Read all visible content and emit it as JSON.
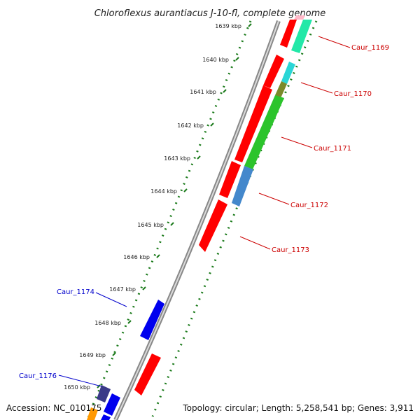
{
  "title": "Chloroflexus aurantiacus J-10-fl, complete genome",
  "accession": "Accession: NC_010175",
  "topology": "Topology: circular; Length: 5,258,541 bp; Genes: 3,911",
  "colors": {
    "forward_label": "#cc0000",
    "reverse_label": "#0000cc",
    "forward_cds": "#ff0000",
    "reverse_cds": "#0000ee",
    "backbone": "#888888",
    "tick": "#1a7a1a",
    "gc_high": "#2cc42c",
    "gc_mid": "#4488cc",
    "gc_low": "#22e8a8"
  },
  "kbp_ticks": [
    {
      "label": "1639 kbp"
    },
    {
      "label": "1640 kbp"
    },
    {
      "label": "1641 kbp"
    },
    {
      "label": "1642 kbp"
    },
    {
      "label": "1643 kbp"
    },
    {
      "label": "1644 kbp"
    },
    {
      "label": "1645 kbp"
    },
    {
      "label": "1646 kbp"
    },
    {
      "label": "1647 kbp"
    },
    {
      "label": "1648 kbp"
    },
    {
      "label": "1649 kbp"
    },
    {
      "label": "1650 kbp"
    }
  ],
  "genes": [
    {
      "id": "Caur_1169",
      "strand": "forward"
    },
    {
      "id": "Caur_1170",
      "strand": "forward"
    },
    {
      "id": "Caur_1171",
      "strand": "forward"
    },
    {
      "id": "Caur_1172",
      "strand": "forward"
    },
    {
      "id": "Caur_1173",
      "strand": "forward"
    },
    {
      "id": "Caur_1174",
      "strand": "reverse"
    },
    {
      "id": "Caur_1176",
      "strand": "reverse"
    }
  ]
}
